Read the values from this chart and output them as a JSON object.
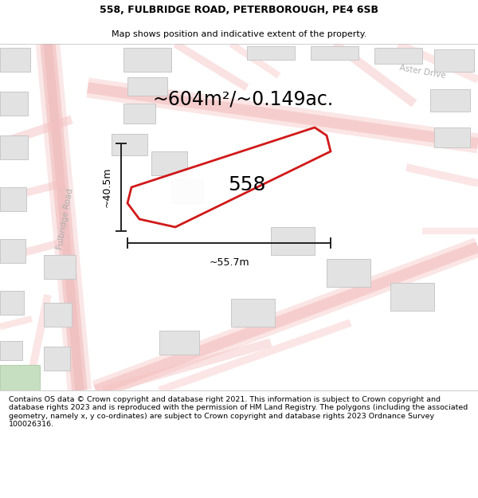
{
  "title_line1": "558, FULBRIDGE ROAD, PETERBOROUGH, PE4 6SB",
  "title_line2": "Map shows position and indicative extent of the property.",
  "footer_text": "Contains OS data © Crown copyright and database right 2021. This information is subject to Crown copyright and database rights 2023 and is reproduced with the permission of HM Land Registry. The polygons (including the associated geometry, namely x, y co-ordinates) are subject to Crown copyright and database rights 2023 Ordnance Survey 100026316.",
  "area_label": "~604m²/~0.149ac.",
  "property_number": "558",
  "width_label": "~55.7m",
  "height_label": "~40.5m",
  "road_label": "Fulbridge Road",
  "road_label2": "Aster Drive",
  "map_bg": "#f2f2f2",
  "road_color_light": "#f5c8c8",
  "road_color_mid": "#f0b0b0",
  "building_fill": "#e2e2e2",
  "building_stroke": "#c8c8c8",
  "property_color": "#cc0000",
  "measure_color": "#222222",
  "title_fontsize": 9.0,
  "subtitle_fontsize": 8.0,
  "footer_fontsize": 6.8,
  "area_fontsize": 17,
  "number_fontsize": 18,
  "road_fontsize": 7.5
}
